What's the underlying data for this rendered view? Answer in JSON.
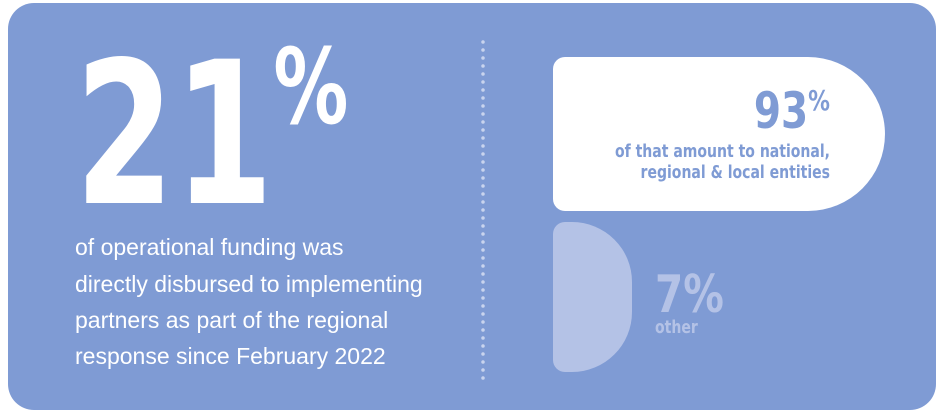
{
  "headline": {
    "value": "21",
    "unit": "%",
    "lines": [
      "of operational funding was",
      "directly disbursed to implementing",
      "partners as part of the regional",
      "response since February 2022"
    ]
  },
  "breakdown": [
    {
      "value": "93",
      "unit": "%",
      "lines": [
        "of that amount to national,",
        "regional & local entities"
      ]
    },
    {
      "value": "7",
      "unit": "%",
      "lines": [
        "other"
      ]
    }
  ]
}
